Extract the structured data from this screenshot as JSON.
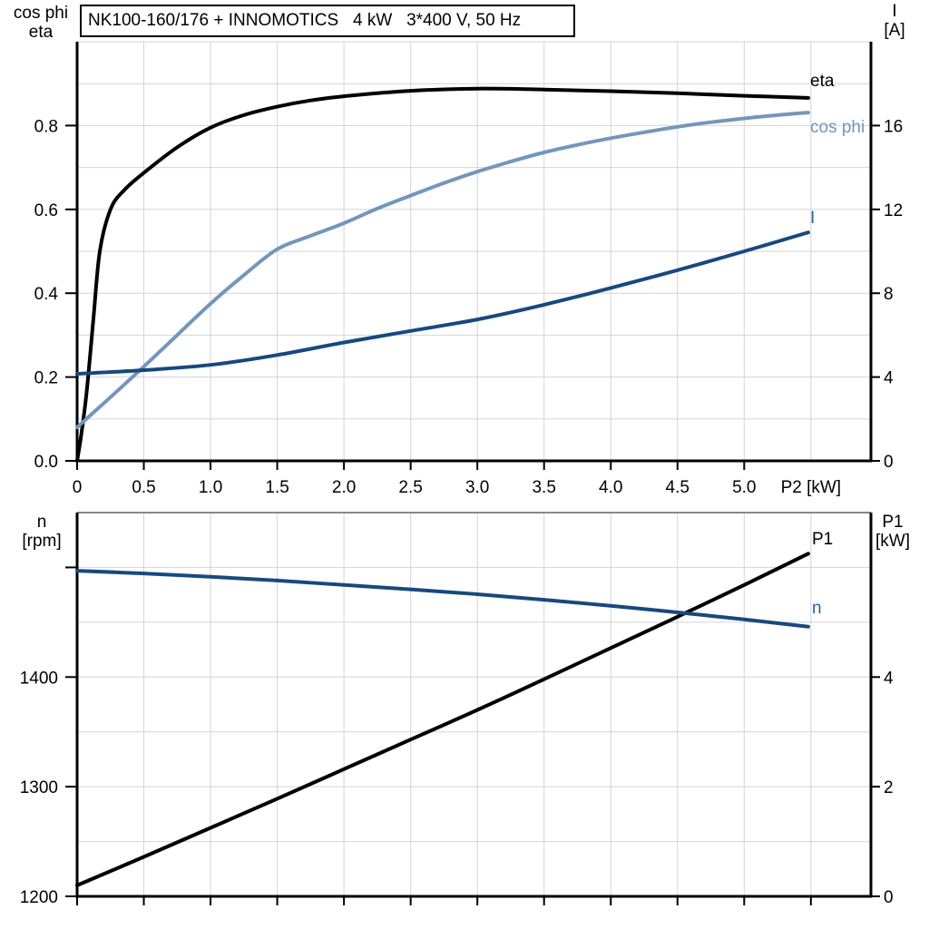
{
  "header": {
    "title": "NK100-160/176 + INNOMOTICS   4 kW   3*400 V, 50 Hz"
  },
  "colors": {
    "black": "#000000",
    "curve_dark_blue": "#17497e",
    "curve_light_blue": "#7496bb",
    "label_blue": "#2a6099",
    "grid": "#d4d4da",
    "top_border_gray": "#888888"
  },
  "chart_data": [
    {
      "type": "line",
      "title": "NK100-160/176 + INNOMOTICS   4 kW   3*400 V, 50 Hz",
      "x_axis": {
        "label": "P2 [kW]",
        "min": 0,
        "max": 5.95,
        "grid_step": 0.5,
        "grid_end": 5.5,
        "tick_values": [
          0,
          0.5,
          1.0,
          1.5,
          2.0,
          2.5,
          3.0,
          3.5,
          4.0,
          4.5,
          5.0
        ],
        "tick_labels": [
          "0",
          "0.5",
          "1.0",
          "1.5",
          "2.0",
          "2.5",
          "3.0",
          "3.5",
          "4.0",
          "4.5",
          "5.0"
        ],
        "unit_label": "P2 [kW]",
        "unit_label_position": 5.5
      },
      "y_left": {
        "title_lines": [
          "cos phi",
          "eta"
        ],
        "min": 0,
        "max": 1.0,
        "grid_step": 0.1,
        "tick_values": [
          0.0,
          0.2,
          0.4,
          0.6,
          0.8
        ],
        "tick_labels": [
          "0.0",
          "0.2",
          "0.4",
          "0.6",
          "0.8"
        ]
      },
      "y_right": {
        "title_lines": [
          "I",
          "[A]"
        ],
        "min": 0,
        "max": 20,
        "grid_step": 2,
        "tick_values": [
          0,
          4,
          8,
          12,
          16
        ],
        "tick_labels": [
          "0",
          "4",
          "8",
          "12",
          "16"
        ]
      },
      "series": [
        {
          "name": "eta",
          "axis": "left",
          "color": "#000000",
          "label_color": "#000000",
          "x": [
            0,
            0.03,
            0.07,
            0.12,
            0.17,
            0.25,
            0.35,
            0.5,
            0.75,
            1.0,
            1.25,
            1.5,
            1.75,
            2.0,
            2.5,
            3.0,
            3.5,
            4.0,
            4.5,
            5.0,
            5.48
          ],
          "y": [
            0,
            0.06,
            0.16,
            0.33,
            0.5,
            0.6,
            0.645,
            0.687,
            0.748,
            0.795,
            0.825,
            0.845,
            0.86,
            0.87,
            0.883,
            0.888,
            0.886,
            0.882,
            0.877,
            0.871,
            0.866
          ]
        },
        {
          "name": "cos phi",
          "axis": "left",
          "color": "#7496bb",
          "label_color": "#7496bb",
          "x": [
            0,
            0.25,
            0.5,
            0.75,
            1.0,
            1.25,
            1.5,
            1.75,
            2.0,
            2.25,
            2.5,
            2.75,
            3.0,
            3.25,
            3.5,
            3.75,
            4.0,
            4.25,
            4.5,
            4.75,
            5.0,
            5.25,
            5.48
          ],
          "y": [
            0.08,
            0.152,
            0.225,
            0.3,
            0.375,
            0.443,
            0.505,
            0.537,
            0.567,
            0.602,
            0.633,
            0.663,
            0.69,
            0.714,
            0.736,
            0.754,
            0.77,
            0.784,
            0.797,
            0.808,
            0.817,
            0.825,
            0.831
          ]
        },
        {
          "name": "I",
          "axis": "right",
          "color": "#17497e",
          "label_color": "#2a6099",
          "x": [
            0,
            0.5,
            1.0,
            1.5,
            2.0,
            2.5,
            3.0,
            3.5,
            4.0,
            4.5,
            5.0,
            5.48
          ],
          "y": [
            4.15,
            4.33,
            4.58,
            5.05,
            5.65,
            6.2,
            6.75,
            7.45,
            8.25,
            9.1,
            10.0,
            10.9
          ]
        }
      ]
    },
    {
      "type": "line",
      "x_axis": {
        "label": "P2 [kW]",
        "min": 0,
        "max": 5.95,
        "grid_step": 0.5,
        "grid_end": 5.5,
        "tick_values": [
          0,
          0.5,
          1.0,
          1.5,
          2.0,
          2.5,
          3.0,
          3.5,
          4.0,
          4.5,
          5.0,
          5.5
        ],
        "tick_labels": []
      },
      "y_left": {
        "title_lines": [
          "n",
          "[rpm]"
        ],
        "min": 1200,
        "max": 1550,
        "grid_step": 50,
        "tick_values": [
          1200,
          1300,
          1400,
          1500
        ],
        "tick_labels": [
          "1200",
          "1300",
          "1400",
          ""
        ]
      },
      "y_right": {
        "title_lines": [
          "P1",
          "[kW]"
        ],
        "min": 0,
        "max": 7,
        "grid_step": 1,
        "tick_values": [
          0,
          2,
          4
        ],
        "tick_labels": [
          "0",
          "2",
          "4"
        ]
      },
      "series": [
        {
          "name": "P1",
          "axis": "right",
          "color": "#000000",
          "label_color": "#000000",
          "x": [
            0,
            0.5,
            1.0,
            1.5,
            2.0,
            2.5,
            3.0,
            3.5,
            4.0,
            4.5,
            5.0,
            5.48
          ],
          "y": [
            0.2,
            0.72,
            1.25,
            1.78,
            2.32,
            2.86,
            3.4,
            3.96,
            4.53,
            5.1,
            5.68,
            6.25
          ]
        },
        {
          "name": "n",
          "axis": "left",
          "color": "#17497e",
          "label_color": "#2a6099",
          "x": [
            0,
            0.5,
            1.0,
            1.5,
            2.0,
            2.5,
            3.0,
            3.5,
            4.0,
            4.5,
            5.0,
            5.48
          ],
          "y": [
            1497,
            1494.5,
            1491.5,
            1488,
            1484,
            1480,
            1475.5,
            1470.5,
            1465,
            1459,
            1452.5,
            1446
          ]
        }
      ]
    }
  ]
}
